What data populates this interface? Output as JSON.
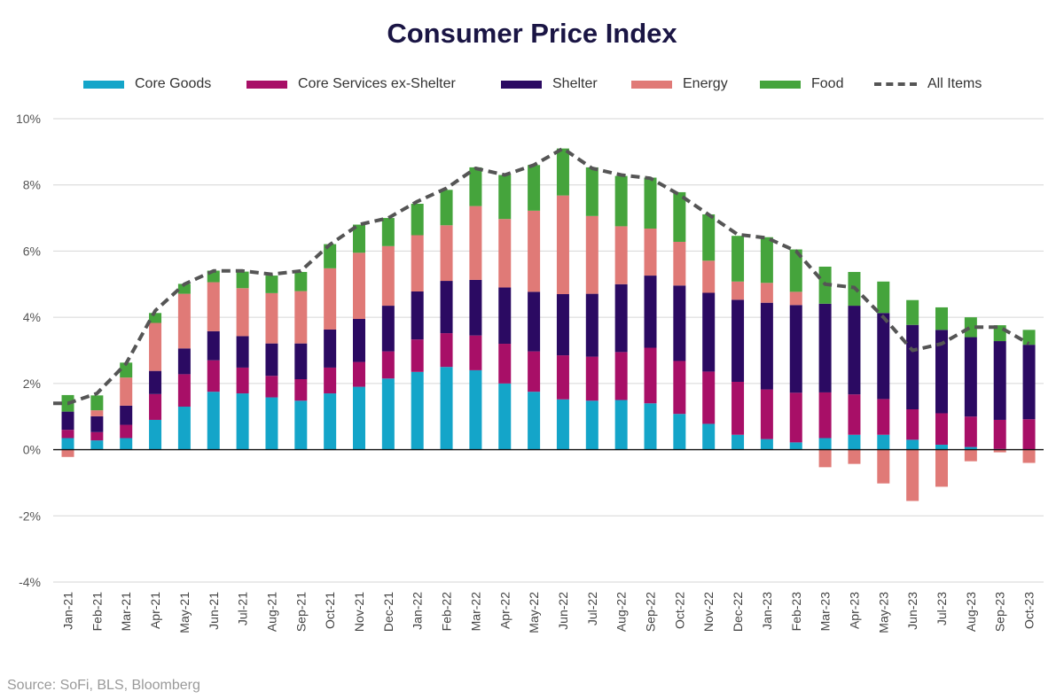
{
  "chart_data": {
    "type": "bar",
    "stacked": true,
    "title": "Consumer Price Index",
    "xlabel": "",
    "ylabel": "",
    "ylim": [
      -4,
      10
    ],
    "yticks": [
      -4,
      -2,
      0,
      2,
      4,
      6,
      8,
      10
    ],
    "ytick_labels": [
      "-4%",
      "-2%",
      "0%",
      "2%",
      "4%",
      "6%",
      "8%",
      "10%"
    ],
    "grid": true,
    "legend_position": "top",
    "categories": [
      "Jan-21",
      "Feb-21",
      "Mar-21",
      "Apr-21",
      "May-21",
      "Jun-21",
      "Jul-21",
      "Aug-21",
      "Sep-21",
      "Oct-21",
      "Nov-21",
      "Dec-21",
      "Jan-22",
      "Feb-22",
      "Mar-22",
      "Apr-22",
      "May-22",
      "Jun-22",
      "Jul-22",
      "Aug-22",
      "Sep-22",
      "Oct-22",
      "Nov-22",
      "Dec-22",
      "Jan-23",
      "Feb-23",
      "Mar-23",
      "Apr-23",
      "May-23",
      "Jun-23",
      "Jul-23",
      "Aug-23",
      "Sep-23",
      "Oct-23"
    ],
    "series": [
      {
        "name": "Core Goods",
        "color": "#14a5c9",
        "kind": "bar",
        "values": [
          0.35,
          0.28,
          0.35,
          0.9,
          1.3,
          1.75,
          1.7,
          1.58,
          1.48,
          1.7,
          1.9,
          2.15,
          2.35,
          2.5,
          2.4,
          2.0,
          1.75,
          1.52,
          1.48,
          1.5,
          1.4,
          1.08,
          0.78,
          0.45,
          0.32,
          0.22,
          0.35,
          0.45,
          0.45,
          0.3,
          0.15,
          0.08,
          0.02,
          0.0
        ]
      },
      {
        "name": "Core Services ex-Shelter",
        "color": "#a80f67",
        "kind": "bar",
        "values": [
          0.25,
          0.25,
          0.4,
          0.78,
          0.98,
          0.95,
          0.78,
          0.65,
          0.65,
          0.78,
          0.75,
          0.82,
          0.98,
          1.02,
          1.05,
          1.2,
          1.22,
          1.33,
          1.33,
          1.45,
          1.68,
          1.6,
          1.58,
          1.6,
          1.5,
          1.5,
          1.38,
          1.22,
          1.08,
          0.92,
          0.95,
          0.92,
          0.88,
          0.92
        ]
      },
      {
        "name": "Shelter",
        "color": "#2b0a62",
        "kind": "bar",
        "values": [
          0.55,
          0.48,
          0.58,
          0.7,
          0.78,
          0.88,
          0.95,
          0.98,
          1.08,
          1.15,
          1.3,
          1.38,
          1.45,
          1.58,
          1.68,
          1.7,
          1.8,
          1.85,
          1.9,
          2.05,
          2.18,
          2.28,
          2.38,
          2.48,
          2.62,
          2.65,
          2.68,
          2.68,
          2.6,
          2.55,
          2.52,
          2.4,
          2.38,
          2.25
        ]
      },
      {
        "name": "Energy",
        "color": "#e07a77",
        "kind": "bar",
        "values": [
          -0.22,
          0.18,
          0.85,
          1.45,
          1.65,
          1.48,
          1.45,
          1.52,
          1.58,
          1.85,
          2.0,
          1.8,
          1.7,
          1.68,
          2.23,
          2.07,
          2.45,
          2.98,
          2.35,
          1.75,
          1.42,
          1.32,
          0.97,
          0.55,
          0.6,
          0.4,
          -0.53,
          -0.43,
          -1.02,
          -1.55,
          -1.12,
          -0.35,
          -0.08,
          -0.4
        ]
      },
      {
        "name": "Food",
        "color": "#45a43c",
        "kind": "bar",
        "values": [
          0.5,
          0.45,
          0.45,
          0.3,
          0.3,
          0.35,
          0.5,
          0.53,
          0.58,
          0.73,
          0.85,
          0.85,
          0.95,
          1.07,
          1.17,
          1.33,
          1.38,
          1.42,
          1.47,
          1.52,
          1.54,
          1.5,
          1.4,
          1.38,
          1.38,
          1.28,
          1.12,
          1.02,
          0.95,
          0.75,
          0.68,
          0.6,
          0.48,
          0.45
        ]
      },
      {
        "name": "All Items",
        "color": "#555555",
        "kind": "line",
        "dashed": true,
        "values": [
          1.4,
          1.7,
          2.6,
          4.2,
          5.0,
          5.4,
          5.4,
          5.3,
          5.4,
          6.2,
          6.8,
          7.0,
          7.5,
          7.9,
          8.5,
          8.3,
          8.6,
          9.1,
          8.5,
          8.3,
          8.2,
          7.7,
          7.1,
          6.5,
          6.4,
          6.0,
          5.0,
          4.9,
          4.0,
          3.0,
          3.2,
          3.7,
          3.7,
          3.2
        ]
      }
    ],
    "source": "Source: SoFi, BLS, Bloomberg"
  }
}
